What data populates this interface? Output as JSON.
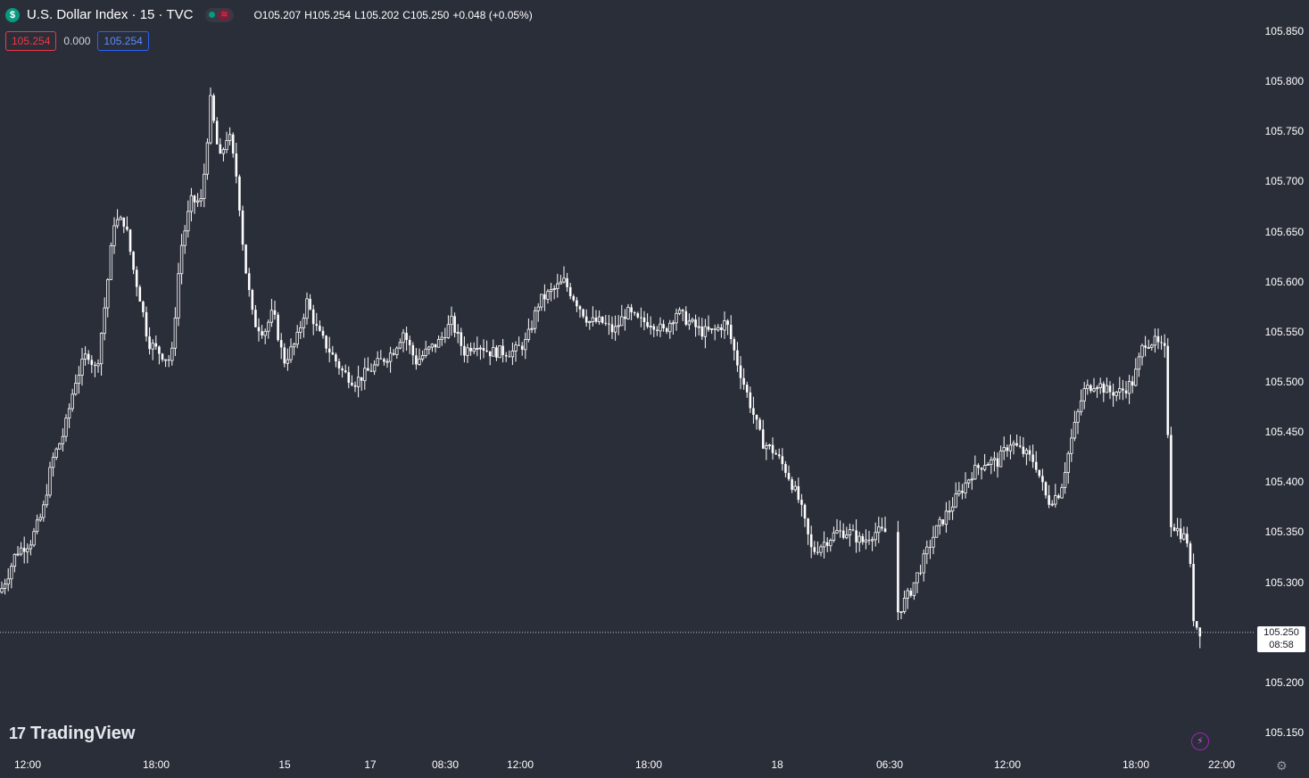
{
  "header": {
    "symbol_badge": "$",
    "title": "U.S. Dollar Index · 15 · TVC",
    "ohlc": {
      "open_label": "O105.207",
      "high_label": "H105.254",
      "low_label": "L105.202",
      "close_label": "C105.250",
      "change_label": "+0.048 (+0.05%)"
    },
    "market_status": "≋"
  },
  "trade": {
    "sell": "105.254",
    "spread": "0.000",
    "buy": "105.254"
  },
  "current_price": {
    "value": "105.250",
    "countdown": "08:58"
  },
  "logo": {
    "mark": "17",
    "text": "TradingView"
  },
  "icons": {
    "bolt": "⚡",
    "settings": "⚙"
  },
  "colors": {
    "background": "#2a2e39",
    "candle": "#ffffff",
    "sell": "#f23645",
    "buy": "#2962ff",
    "status_ok": "#089981"
  },
  "chart_data": {
    "type": "candlestick",
    "ylim": [
      105.15,
      105.85
    ],
    "y_ticks": [
      "105.850",
      "105.800",
      "105.750",
      "105.700",
      "105.650",
      "105.600",
      "105.550",
      "105.500",
      "105.450",
      "105.400",
      "105.350",
      "105.300",
      "105.250",
      "105.200",
      "105.150"
    ],
    "x_ticks": [
      "12:00",
      "18:00",
      "15",
      "17",
      "08:30",
      "12:00",
      "18:00",
      "18",
      "06:30",
      "12:00",
      "18:00",
      "22:00"
    ],
    "close_path": [
      [
        0,
        105.29
      ],
      [
        10,
        105.31
      ],
      [
        18,
        105.33
      ],
      [
        34,
        105.34
      ],
      [
        48,
        105.37
      ],
      [
        58,
        105.42
      ],
      [
        72,
        105.45
      ],
      [
        84,
        105.5
      ],
      [
        98,
        105.53
      ],
      [
        108,
        105.51
      ],
      [
        118,
        105.58
      ],
      [
        128,
        105.66
      ],
      [
        140,
        105.66
      ],
      [
        150,
        105.61
      ],
      [
        158,
        105.58
      ],
      [
        166,
        105.54
      ],
      [
        178,
        105.53
      ],
      [
        192,
        105.52
      ],
      [
        202,
        105.63
      ],
      [
        214,
        105.68
      ],
      [
        226,
        105.68
      ],
      [
        236,
        105.78
      ],
      [
        246,
        105.72
      ],
      [
        256,
        105.75
      ],
      [
        266,
        105.7
      ],
      [
        274,
        105.62
      ],
      [
        284,
        105.56
      ],
      [
        296,
        105.55
      ],
      [
        306,
        105.57
      ],
      [
        318,
        105.52
      ],
      [
        332,
        105.54
      ],
      [
        344,
        105.58
      ],
      [
        356,
        105.55
      ],
      [
        370,
        105.53
      ],
      [
        384,
        105.51
      ],
      [
        398,
        105.5
      ],
      [
        412,
        105.51
      ],
      [
        426,
        105.52
      ],
      [
        440,
        105.53
      ],
      [
        452,
        105.55
      ],
      [
        466,
        105.52
      ],
      [
        478,
        105.53
      ],
      [
        492,
        105.54
      ],
      [
        506,
        105.56
      ],
      [
        520,
        105.53
      ],
      [
        534,
        105.54
      ],
      [
        548,
        105.53
      ],
      [
        562,
        105.53
      ],
      [
        576,
        105.53
      ],
      [
        590,
        105.54
      ],
      [
        604,
        105.58
      ],
      [
        618,
        105.59
      ],
      [
        632,
        105.6
      ],
      [
        646,
        105.58
      ],
      [
        660,
        105.56
      ],
      [
        674,
        105.56
      ],
      [
        688,
        105.55
      ],
      [
        702,
        105.57
      ],
      [
        716,
        105.56
      ],
      [
        730,
        105.56
      ],
      [
        744,
        105.55
      ],
      [
        758,
        105.57
      ],
      [
        772,
        105.56
      ],
      [
        786,
        105.55
      ],
      [
        800,
        105.55
      ],
      [
        814,
        105.56
      ],
      [
        826,
        105.52
      ],
      [
        840,
        105.48
      ],
      [
        854,
        105.44
      ],
      [
        868,
        105.43
      ],
      [
        882,
        105.41
      ],
      [
        896,
        105.38
      ],
      [
        910,
        105.33
      ],
      [
        924,
        105.34
      ],
      [
        938,
        105.35
      ],
      [
        952,
        105.35
      ],
      [
        966,
        105.34
      ],
      [
        980,
        105.35
      ],
      [
        992,
        105.35
      ],
      [
        1006,
        105.27
      ],
      [
        1020,
        105.29
      ],
      [
        1034,
        105.32
      ],
      [
        1048,
        105.35
      ],
      [
        1062,
        105.37
      ],
      [
        1076,
        105.39
      ],
      [
        1090,
        105.41
      ],
      [
        1104,
        105.42
      ],
      [
        1118,
        105.42
      ],
      [
        1132,
        105.44
      ],
      [
        1146,
        105.43
      ],
      [
        1160,
        105.42
      ],
      [
        1174,
        105.38
      ],
      [
        1188,
        105.39
      ],
      [
        1200,
        105.44
      ],
      [
        1214,
        105.49
      ],
      [
        1228,
        105.5
      ],
      [
        1242,
        105.49
      ],
      [
        1256,
        105.49
      ],
      [
        1270,
        105.5
      ],
      [
        1282,
        105.54
      ],
      [
        1294,
        105.54
      ],
      [
        1306,
        105.53
      ],
      [
        1312,
        105.36
      ],
      [
        1322,
        105.35
      ],
      [
        1332,
        105.34
      ],
      [
        1338,
        105.26
      ],
      [
        1346,
        105.25
      ]
    ]
  }
}
